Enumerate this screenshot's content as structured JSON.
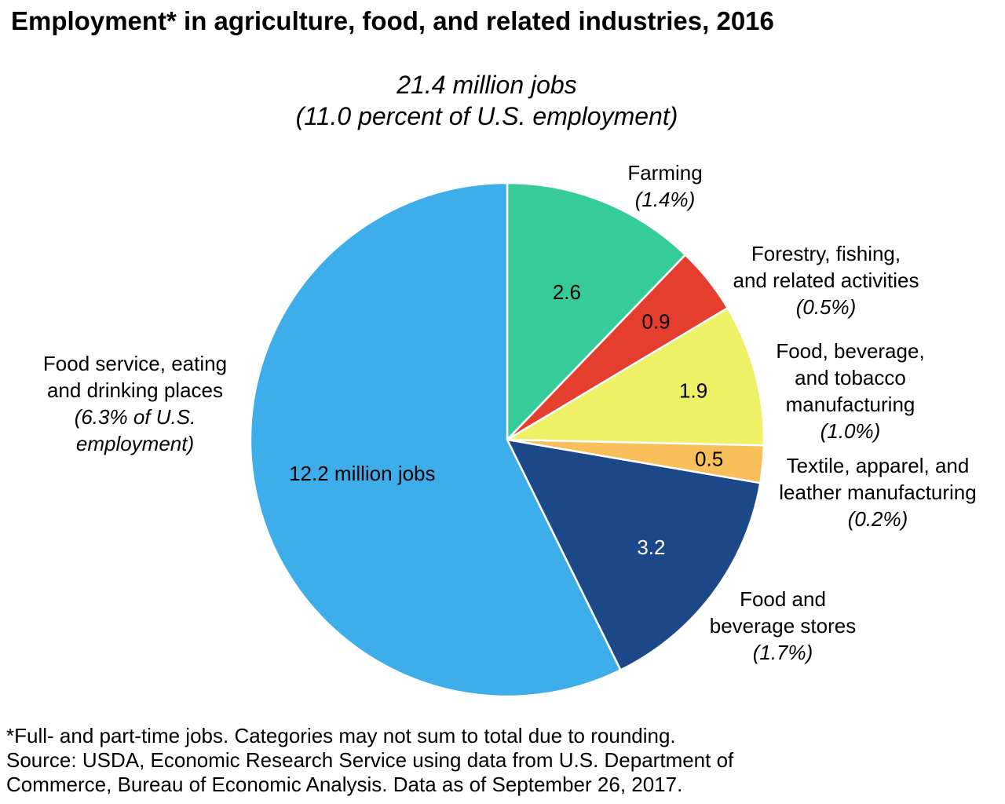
{
  "chart_data": {
    "type": "pie",
    "title": "Employment* in agriculture, food, and related industries, 2016",
    "subtitle_lines": [
      "21.4 million jobs",
      "(11.0 percent of U.S. employment)"
    ],
    "unit": "million jobs",
    "slices": [
      {
        "name_lines": [
          "Farming"
        ],
        "share_label": "(1.4%)",
        "value": 2.6,
        "value_label": "2.6",
        "color": "#36cc9a"
      },
      {
        "name_lines": [
          "Forestry, fishing,",
          "and related activities"
        ],
        "share_label": "(0.5%)",
        "value": 0.9,
        "value_label": "0.9",
        "color": "#e63e2e"
      },
      {
        "name_lines": [
          "Food, beverage,",
          "and tobacco",
          "manufacturing"
        ],
        "share_label": "(1.0%)",
        "value": 1.9,
        "value_label": "1.9",
        "color": "#eef065"
      },
      {
        "name_lines": [
          "Textile, apparel, and",
          "leather manufacturing"
        ],
        "share_label": "(0.2%)",
        "value": 0.5,
        "value_label": "0.5",
        "color": "#f9bf5a"
      },
      {
        "name_lines": [
          "Food and",
          "beverage stores"
        ],
        "share_label": "(1.7%)",
        "value": 3.2,
        "value_label": "3.2",
        "color": "#1c4889"
      },
      {
        "name_lines": [
          "Food service, eating",
          "and drinking places"
        ],
        "share_lines": [
          "(6.3% of U.S.",
          "employment)"
        ],
        "value": 12.2,
        "value_label": "12.2 million jobs",
        "color": "#3daeea"
      }
    ],
    "footnote_lines": [
      "*Full- and part-time jobs. Categories may not sum to total due to rounding.",
      "Source: USDA, Economic Research Service using data from U.S. Department of",
      "Commerce, Bureau of Economic Analysis. Data as of September 26, 2017."
    ]
  }
}
